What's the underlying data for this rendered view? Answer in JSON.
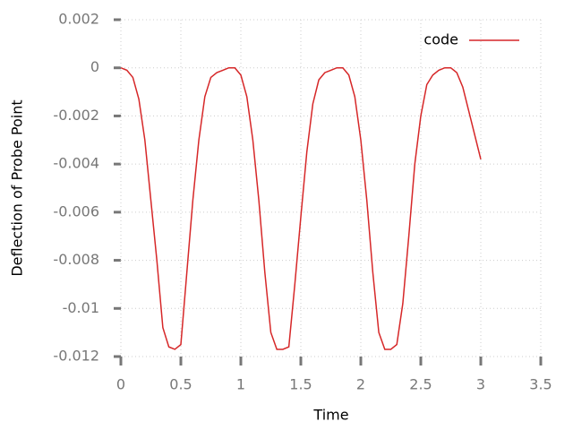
{
  "chart_data": {
    "type": "line",
    "xlabel": "Time",
    "ylabel": "Deflection of Probe Point",
    "x": [
      0,
      0.05,
      0.1,
      0.15,
      0.2,
      0.25,
      0.3,
      0.35,
      0.4,
      0.45,
      0.5,
      0.55,
      0.6,
      0.65,
      0.7,
      0.75,
      0.8,
      0.85,
      0.9,
      0.95,
      1.0,
      1.05,
      1.1,
      1.15,
      1.2,
      1.25,
      1.3,
      1.35,
      1.4,
      1.45,
      1.5,
      1.55,
      1.6,
      1.65,
      1.7,
      1.75,
      1.8,
      1.85,
      1.9,
      1.95,
      2.0,
      2.05,
      2.1,
      2.15,
      2.2,
      2.25,
      2.3,
      2.35,
      2.4,
      2.45,
      2.5,
      2.55,
      2.6,
      2.65,
      2.7,
      2.75,
      2.8,
      2.85,
      2.9,
      2.95,
      3.0
    ],
    "series": [
      {
        "name": "code",
        "color": "#d62728",
        "values": [
          0,
          -0.0001,
          -0.0004,
          -0.0013,
          -0.003,
          -0.0055,
          -0.008,
          -0.0108,
          -0.0116,
          -0.0117,
          -0.0115,
          -0.0085,
          -0.0055,
          -0.003,
          -0.0012,
          -0.0004,
          -0.0002,
          -0.0001,
          0,
          0,
          -0.0003,
          -0.0012,
          -0.003,
          -0.0055,
          -0.0085,
          -0.011,
          -0.0117,
          -0.0117,
          -0.0116,
          -0.009,
          -0.0062,
          -0.0035,
          -0.0015,
          -0.0005,
          -0.0002,
          -0.0001,
          0,
          0,
          -0.0003,
          -0.0012,
          -0.003,
          -0.0055,
          -0.0085,
          -0.011,
          -0.0117,
          -0.0117,
          -0.0115,
          -0.0098,
          -0.007,
          -0.004,
          -0.002,
          -0.0007,
          -0.0003,
          -0.0001,
          0,
          0,
          -0.0002,
          -0.0008,
          -0.0018,
          -0.0028,
          -0.0038
        ]
      }
    ],
    "xlim": [
      0,
      3.5
    ],
    "xticks": [
      0,
      0.5,
      1,
      1.5,
      2,
      2.5,
      3,
      3.5
    ],
    "ylim": [
      -0.012,
      0.002
    ],
    "yticks": [
      0.002,
      0,
      -0.002,
      -0.004,
      -0.006,
      -0.008,
      -0.01,
      -0.012
    ],
    "grid": true,
    "legend": "upper right"
  }
}
